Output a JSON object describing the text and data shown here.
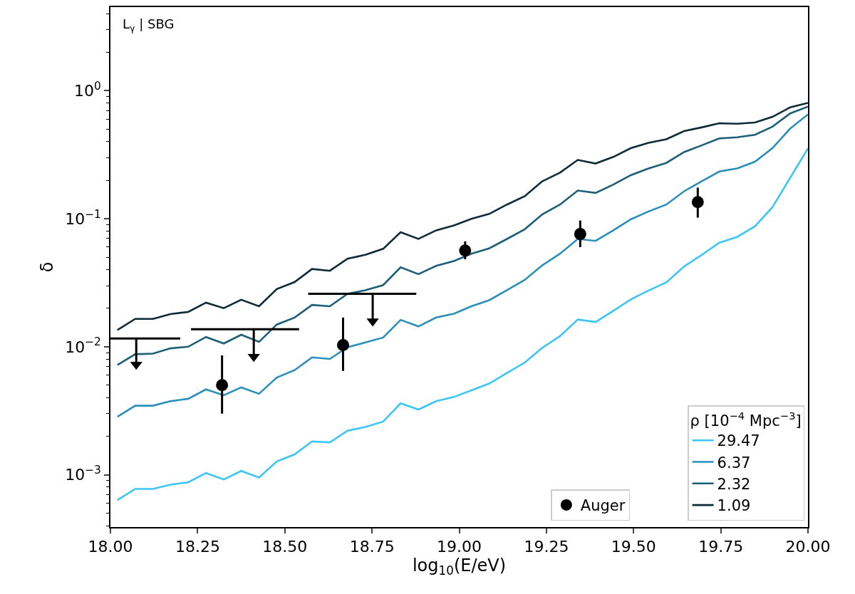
{
  "chart_data": {
    "type": "line",
    "xlabel": "log$_{10}$(E/eV)",
    "ylabel": "δ",
    "legend_title": "ρ [10$^{−4}$ Mpc$^{−3}$]",
    "annotations": [
      "L$_{γ}$ | SBG"
    ],
    "x": [
      18.02,
      18.071,
      18.122,
      18.172,
      18.223,
      18.274,
      18.325,
      18.375,
      18.426,
      18.477,
      18.528,
      18.578,
      18.629,
      18.68,
      18.731,
      18.782,
      18.832,
      18.883,
      18.934,
      18.985,
      19.035,
      19.086,
      19.137,
      19.188,
      19.238,
      19.289,
      19.34,
      19.391,
      19.442,
      19.492,
      19.543,
      19.594,
      19.645,
      19.695,
      19.746,
      19.797,
      19.848,
      19.898,
      19.949,
      20.0
    ],
    "xlim": [
      18.0,
      20.0
    ],
    "xticks": [
      {
        "value": 18.0,
        "label": "18.00"
      },
      {
        "value": 18.25,
        "label": "18.25"
      },
      {
        "value": 18.5,
        "label": "18.50"
      },
      {
        "value": 18.75,
        "label": "18.75"
      },
      {
        "value": 19.0,
        "label": "19.00"
      },
      {
        "value": 19.25,
        "label": "19.25"
      },
      {
        "value": 19.5,
        "label": "19.50"
      },
      {
        "value": 19.75,
        "label": "19.75"
      },
      {
        "value": 20.0,
        "label": "20.00"
      }
    ],
    "log": "y",
    "ylim": [
      0.00039,
      4.5
    ],
    "yticks": [
      {
        "value": 0.0004,
        "label": null
      },
      {
        "value": 0.0005,
        "label": null
      },
      {
        "value": 0.0006,
        "label": null
      },
      {
        "value": 0.0007,
        "label": null
      },
      {
        "value": 0.0008,
        "label": null
      },
      {
        "value": 0.0009,
        "label": null
      },
      {
        "value": 0.001,
        "label": "10$^{−3}$"
      },
      {
        "value": 0.002,
        "label": null
      },
      {
        "value": 0.003,
        "label": null
      },
      {
        "value": 0.004,
        "label": null
      },
      {
        "value": 0.005,
        "label": null
      },
      {
        "value": 0.006,
        "label": null
      },
      {
        "value": 0.007,
        "label": null
      },
      {
        "value": 0.008,
        "label": null
      },
      {
        "value": 0.009,
        "label": null
      },
      {
        "value": 0.01,
        "label": "10$^{−2}$"
      },
      {
        "value": 0.02,
        "label": null
      },
      {
        "value": 0.03,
        "label": null
      },
      {
        "value": 0.04,
        "label": null
      },
      {
        "value": 0.05,
        "label": null
      },
      {
        "value": 0.06,
        "label": null
      },
      {
        "value": 0.07,
        "label": null
      },
      {
        "value": 0.08,
        "label": null
      },
      {
        "value": 0.09,
        "label": null
      },
      {
        "value": 0.1,
        "label": "10$^{−1}$"
      },
      {
        "value": 0.2,
        "label": null
      },
      {
        "value": 0.3,
        "label": null
      },
      {
        "value": 0.4,
        "label": null
      },
      {
        "value": 0.5,
        "label": null
      },
      {
        "value": 0.6,
        "label": null
      },
      {
        "value": 0.7,
        "label": null
      },
      {
        "value": 0.8,
        "label": null
      },
      {
        "value": 0.9,
        "label": null
      },
      {
        "value": 1,
        "label": "10$^{0}$"
      },
      {
        "value": 2,
        "label": null
      },
      {
        "value": 3,
        "label": null
      },
      {
        "value": 4,
        "label": null
      }
    ],
    "legend": "bottom right",
    "series": [
      {
        "name": "29.47",
        "color": "#3bc6f7",
        "values": [
          0.000633,
          0.000774,
          0.000774,
          0.000836,
          0.000872,
          0.00103,
          0.000918,
          0.00107,
          0.00095,
          0.00127,
          0.00144,
          0.00182,
          0.00179,
          0.00221,
          0.00236,
          0.0026,
          0.00361,
          0.00323,
          0.00375,
          0.00405,
          0.00457,
          0.00515,
          0.00623,
          0.00752,
          0.0098,
          0.0121,
          0.0163,
          0.0156,
          0.0191,
          0.0234,
          0.0275,
          0.0318,
          0.0424,
          0.0521,
          0.065,
          0.072,
          0.0873,
          0.123,
          0.209,
          0.355
        ]
      },
      {
        "name": "6.37",
        "color": "#2a8fba",
        "values": [
          0.00284,
          0.00346,
          0.00346,
          0.00375,
          0.00392,
          0.00464,
          0.00418,
          0.00481,
          0.00429,
          0.00574,
          0.00656,
          0.00825,
          0.00802,
          0.00991,
          0.0108,
          0.0118,
          0.0162,
          0.0144,
          0.0169,
          0.0181,
          0.0207,
          0.0231,
          0.0277,
          0.0333,
          0.0432,
          0.0533,
          0.0695,
          0.0671,
          0.0811,
          0.0989,
          0.114,
          0.129,
          0.164,
          0.196,
          0.234,
          0.247,
          0.279,
          0.356,
          0.506,
          0.653
        ]
      },
      {
        "name": "2.32",
        "color": "#1d5e79",
        "values": [
          0.0072,
          0.00873,
          0.00883,
          0.00971,
          0.01,
          0.0119,
          0.0106,
          0.0124,
          0.0109,
          0.0149,
          0.0169,
          0.0212,
          0.0207,
          0.0259,
          0.0276,
          0.0303,
          0.0417,
          0.0369,
          0.0428,
          0.0467,
          0.0533,
          0.0587,
          0.0695,
          0.0828,
          0.108,
          0.129,
          0.166,
          0.159,
          0.185,
          0.219,
          0.247,
          0.273,
          0.332,
          0.374,
          0.424,
          0.433,
          0.453,
          0.524,
          0.665,
          0.752
        ]
      },
      {
        "name": "1.09",
        "color": "#0e2b38",
        "values": [
          0.0135,
          0.0165,
          0.0165,
          0.018,
          0.0187,
          0.0221,
          0.02,
          0.0233,
          0.0207,
          0.0282,
          0.032,
          0.0405,
          0.0392,
          0.0487,
          0.0523,
          0.0582,
          0.0784,
          0.0696,
          0.0811,
          0.0886,
          0.0997,
          0.109,
          0.129,
          0.15,
          0.196,
          0.229,
          0.288,
          0.27,
          0.304,
          0.356,
          0.392,
          0.418,
          0.484,
          0.517,
          0.557,
          0.552,
          0.565,
          0.625,
          0.742,
          0.803
        ]
      },
      {
        "name": "Auger",
        "color": "#000000",
        "type": "scatter",
        "marker": "circle",
        "x": [
          18.32,
          18.667,
          19.017,
          19.347,
          19.684
        ],
        "values": [
          0.00501,
          0.0103,
          0.0565,
          0.0759,
          0.135
        ],
        "errors": [
          [
            0.003,
            0.00855
          ],
          [
            0.00647,
            0.0169
          ],
          [
            0.0482,
            0.0665
          ],
          [
            0.06,
            0.0968
          ],
          [
            0.102,
            0.175
          ]
        ]
      },
      {
        "color": "#000000",
        "type": "scatter",
        "marker": "triangle",
        "x": [
          18.074,
          18.411,
          18.752
        ],
        "values": [
          0.00726,
          0.00836,
          0.0158
        ],
        "errors": [
          [
            0.00726,
            0.0116
          ],
          [
            0.00836,
            0.0137
          ],
          [
            0.0158,
            0.0259
          ]
        ]
      },
      {
        "color": "#000000",
        "type": "line",
        "x": [
          18.0,
          18.2,
          null,
          18.231,
          18.541,
          null,
          18.567,
          18.877
        ],
        "values": [
          0.0116,
          0.0116,
          null,
          0.0137,
          0.0137,
          null,
          0.0259,
          0.0259
        ]
      }
    ]
  }
}
